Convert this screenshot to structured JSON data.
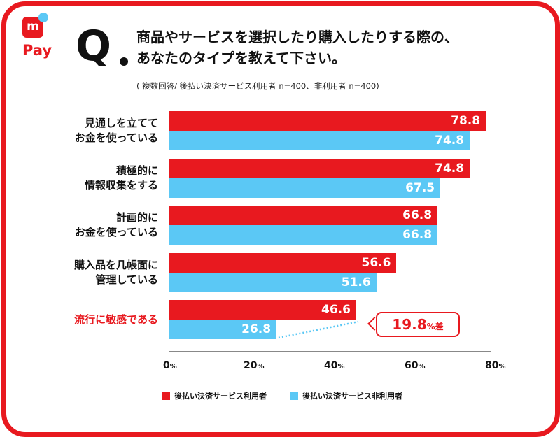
{
  "brand": {
    "logo_mark": "m",
    "logo_text": "Pay"
  },
  "question": {
    "mark": "Q",
    "line1": "商品やサービスを選択したり購入したりする際の、",
    "line2": "あなたのタイプを教えて下さい。",
    "note": "( 複数回答/ 後払い決済サービス利用者 n=400、非利用者 n=400)"
  },
  "colors": {
    "accent": "#e8191f",
    "series1": "#e8191f",
    "series2": "#5bc8f5"
  },
  "diff_callout": {
    "value": "19.8",
    "unit": "%差"
  },
  "axis_ticks": [
    {
      "num": "0",
      "unit": "%"
    },
    {
      "num": "20",
      "unit": "%"
    },
    {
      "num": "40",
      "unit": "%"
    },
    {
      "num": "60",
      "unit": "%"
    },
    {
      "num": "80",
      "unit": "%"
    }
  ],
  "chart_data": {
    "type": "bar",
    "orientation": "horizontal",
    "title": "商品やサービスを選択したり購入したりする際の、あなたのタイプを教えて下さい。",
    "categories": [
      [
        "見通しを立てて",
        "お金を使っている"
      ],
      [
        "積極的に",
        "情報収集をする"
      ],
      [
        "計画的に",
        "お金を使っている"
      ],
      [
        "購入品を几帳面に",
        "管理している"
      ],
      [
        "流行に敏感である"
      ]
    ],
    "highlight_category": 4,
    "series": [
      {
        "name": "後払い決済サービス利用者",
        "values": [
          78.8,
          74.8,
          66.8,
          56.6,
          46.6
        ],
        "labels": [
          "78.8",
          "74.8",
          "66.8",
          "56.6",
          "46.6"
        ]
      },
      {
        "name": "後払い決済サービス非利用者",
        "values": [
          74.8,
          67.5,
          66.8,
          51.6,
          26.8
        ],
        "labels": [
          "74.8",
          "67.5",
          "66.8",
          "51.6",
          "26.8"
        ]
      }
    ],
    "xlim": [
      0,
      80
    ],
    "xticks": [
      0,
      20,
      40,
      60,
      80
    ],
    "legend": "bottom"
  }
}
